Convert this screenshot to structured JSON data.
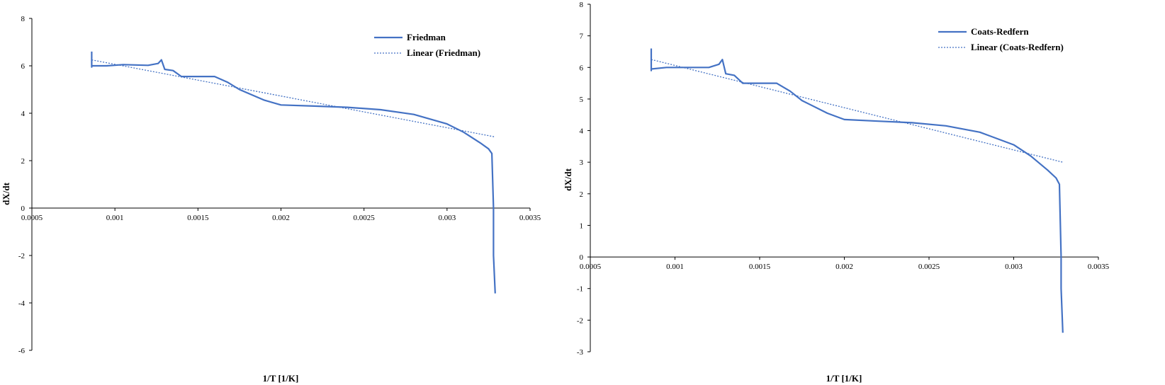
{
  "colors": {
    "series": "#4472C4",
    "axis": "#000000",
    "background": "#ffffff"
  },
  "chart_data": [
    {
      "type": "line",
      "xlabel": "1/T [1/K]",
      "ylabel": "dX/dt",
      "xlim": [
        0.0005,
        0.0035
      ],
      "ylim": [
        -6,
        8
      ],
      "x_ticks": [
        "0.0005",
        "0.001",
        "0.0015",
        "0.002",
        "0.0025",
        "0.003",
        "0.0035"
      ],
      "y_ticks": [
        "8",
        "6",
        "4",
        "2",
        "0",
        "-2",
        "-4",
        "-6"
      ],
      "grid": false,
      "legend_position": "top-right",
      "series": [
        {
          "name": "Friedman",
          "style": "solid",
          "x": [
            0.00086,
            0.00086,
            0.00086,
            0.00095,
            0.00105,
            0.0012,
            0.00126,
            0.00128,
            0.0013,
            0.00135,
            0.0014,
            0.0015,
            0.0016,
            0.00168,
            0.00175,
            0.0019,
            0.002,
            0.0022,
            0.0024,
            0.0026,
            0.0028,
            0.003,
            0.0031,
            0.0032,
            0.00325,
            0.00327,
            0.00328,
            0.00328,
            0.00329
          ],
          "y": [
            6.6,
            5.95,
            6.0,
            6.0,
            6.05,
            6.02,
            6.1,
            6.25,
            5.85,
            5.8,
            5.55,
            5.55,
            5.55,
            5.3,
            5.0,
            4.55,
            4.35,
            4.3,
            4.25,
            4.15,
            3.95,
            3.55,
            3.2,
            2.75,
            2.5,
            2.3,
            0.0,
            -2.0,
            -3.6
          ]
        },
        {
          "name": "Linear (Friedman)",
          "style": "dotted",
          "x": [
            0.00086,
            0.00329
          ],
          "y": [
            6.25,
            3.0
          ]
        }
      ]
    },
    {
      "type": "line",
      "xlabel": "1/T [1/K]",
      "ylabel": "dX/dt",
      "xlim": [
        0.0005,
        0.0035
      ],
      "ylim": [
        -3,
        8
      ],
      "x_ticks": [
        "0.0005",
        "0.001",
        "0.0015",
        "0.002",
        "0.0025",
        "0.003",
        "0.0035"
      ],
      "y_ticks": [
        "8",
        "7",
        "6",
        "5",
        "4",
        "3",
        "2",
        "1",
        "0",
        "-1",
        "-2",
        "-3"
      ],
      "grid": false,
      "legend_position": "top-right",
      "series": [
        {
          "name": "Coats-Redfern",
          "style": "solid",
          "x": [
            0.00086,
            0.00086,
            0.00086,
            0.00095,
            0.00105,
            0.0012,
            0.00126,
            0.00128,
            0.0013,
            0.00135,
            0.0014,
            0.0015,
            0.0016,
            0.00168,
            0.00175,
            0.0019,
            0.002,
            0.0022,
            0.0024,
            0.0026,
            0.0028,
            0.003,
            0.0031,
            0.0032,
            0.00325,
            0.00327,
            0.00328,
            0.00328,
            0.00329
          ],
          "y": [
            6.6,
            5.9,
            5.95,
            6.0,
            6.0,
            6.0,
            6.1,
            6.25,
            5.8,
            5.75,
            5.5,
            5.5,
            5.5,
            5.25,
            4.95,
            4.55,
            4.35,
            4.3,
            4.25,
            4.15,
            3.95,
            3.55,
            3.2,
            2.75,
            2.5,
            2.3,
            0.0,
            -1.0,
            -2.4
          ]
        },
        {
          "name": "Linear (Coats-Redfern)",
          "style": "dotted",
          "x": [
            0.00086,
            0.00329
          ],
          "y": [
            6.25,
            3.0
          ]
        }
      ]
    }
  ]
}
